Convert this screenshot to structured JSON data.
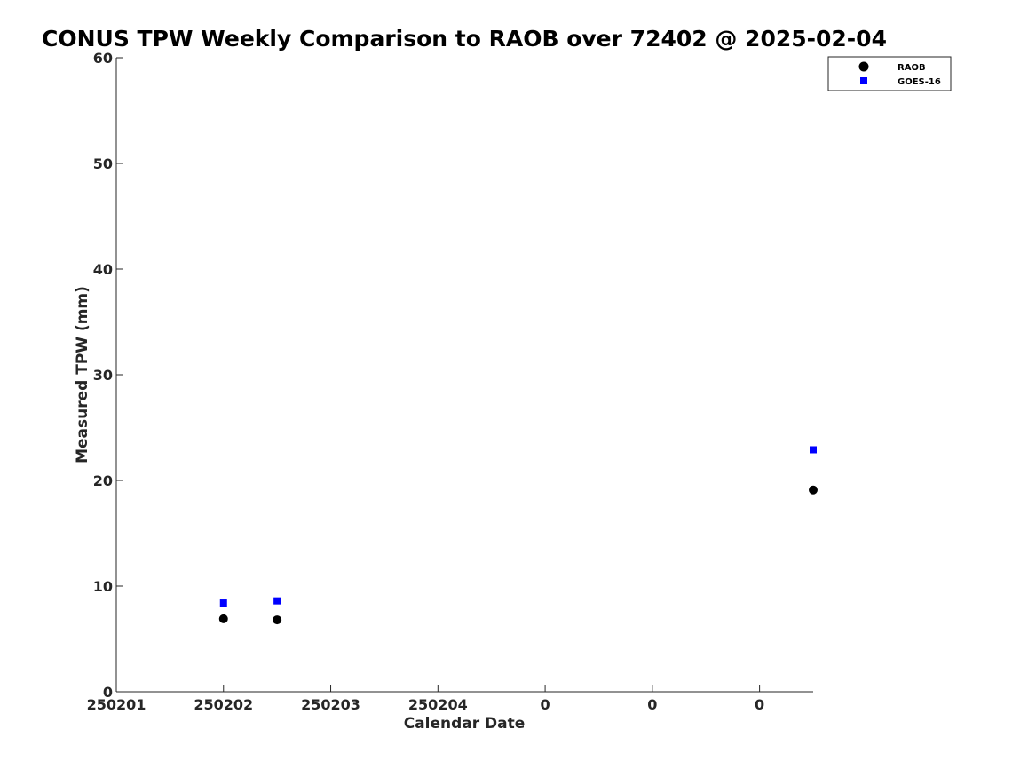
{
  "chart_data": {
    "type": "scatter",
    "title": "CONUS TPW Weekly Comparison to RAOB over 72402 @ 2025-02-04",
    "xlabel": "Calendar Date",
    "ylabel": "Measured TPW (mm)",
    "xlim": [
      0,
      6.5
    ],
    "ylim": [
      0,
      60
    ],
    "x_ticks": [
      0,
      1,
      2,
      3,
      4,
      5,
      6
    ],
    "x_tick_labels": [
      "250201",
      "250202",
      "250203",
      "250204",
      "0",
      "0",
      "0"
    ],
    "y_ticks": [
      0,
      10,
      20,
      30,
      40,
      50,
      60
    ],
    "y_tick_labels": [
      "0",
      "10",
      "20",
      "30",
      "40",
      "50",
      "60"
    ],
    "grid": false,
    "legend_position": "top-right",
    "series": [
      {
        "name": "RAOB",
        "marker": "circle",
        "color": "#000000",
        "x": [
          1.0,
          1.5,
          6.5
        ],
        "y": [
          6.9,
          6.8,
          19.1
        ]
      },
      {
        "name": "GOES-16",
        "marker": "square",
        "color": "#0000ff",
        "x": [
          1.0,
          1.5,
          6.5
        ],
        "y": [
          8.4,
          8.6,
          22.9
        ]
      }
    ]
  }
}
